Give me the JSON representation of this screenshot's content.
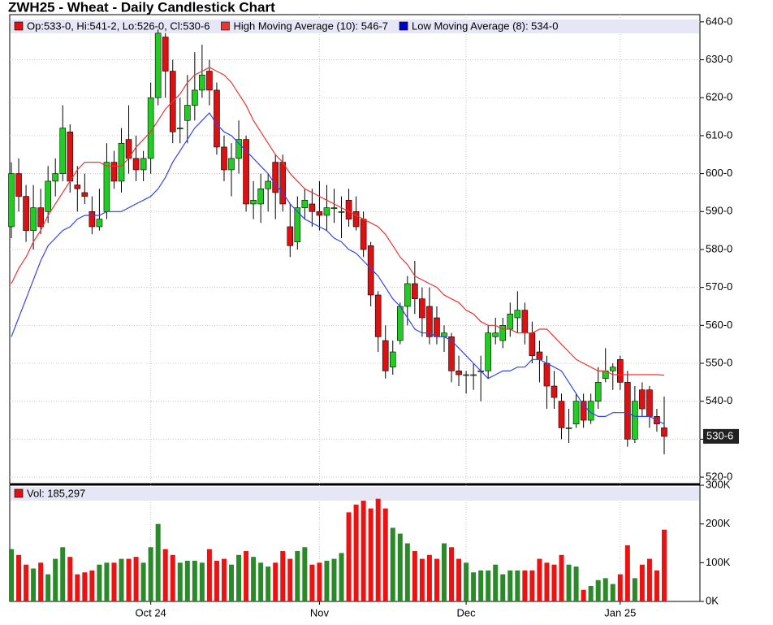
{
  "chart_data": [
    {
      "type": "candlestick",
      "title": "ZWH25 - Wheat - Daily Candlestick Chart",
      "ohlc_label": "Op:533-0, Hi:541-2, Lo:526-0, Cl:530-6",
      "last_label": "530-6",
      "up_color": "#22cc22",
      "down_color": "#dd1111",
      "ylim": [
        518.3,
        641.9
      ],
      "yticks": [
        {
          "value": 520,
          "label": "520-0"
        },
        {
          "value": 530,
          "label": "530-0"
        },
        {
          "value": 540,
          "label": "540-0"
        },
        {
          "value": 550,
          "label": "550-0"
        },
        {
          "value": 560,
          "label": "560-0"
        },
        {
          "value": 570,
          "label": "570-0"
        },
        {
          "value": 580,
          "label": "580-0"
        },
        {
          "value": 590,
          "label": "590-0"
        },
        {
          "value": 600,
          "label": "600-0"
        },
        {
          "value": 610,
          "label": "610-0"
        },
        {
          "value": 620,
          "label": "620-0"
        },
        {
          "value": 630,
          "label": "630-0"
        },
        {
          "value": 640,
          "label": "640-0"
        }
      ],
      "grid": true,
      "open": [
        586,
        600,
        594,
        585,
        591,
        590,
        598,
        600,
        611,
        597,
        595,
        590,
        586,
        590,
        603,
        598,
        609,
        604,
        601,
        604,
        620,
        636,
        627,
        612,
        614,
        618,
        622,
        627,
        622,
        607,
        601,
        604,
        609,
        592,
        592,
        596,
        603,
        603,
        586,
        582,
        591,
        592,
        590,
        589,
        591,
        590,
        593,
        590,
        588,
        581,
        568,
        556,
        549,
        556,
        565,
        571,
        567,
        565,
        562,
        557,
        557,
        548,
        547,
        547,
        548,
        548,
        557,
        556,
        559,
        562,
        564,
        558,
        553,
        550,
        544,
        540,
        533,
        534,
        540,
        535,
        540,
        546,
        548,
        551,
        545,
        530,
        543,
        543,
        536,
        533
      ],
      "high": [
        603,
        604,
        597,
        597,
        596,
        602,
        604,
        618,
        613,
        602,
        600,
        594,
        596,
        608,
        606,
        612,
        618,
        610,
        606,
        624,
        638,
        637,
        630,
        620,
        626,
        632,
        634,
        630,
        624,
        610,
        608,
        614,
        610,
        598,
        600,
        600,
        605,
        605,
        592,
        594,
        596,
        596,
        598,
        597,
        596,
        594,
        596,
        594,
        590,
        582,
        569,
        560,
        556,
        566,
        573,
        577,
        570,
        570,
        565,
        560,
        558,
        552,
        548,
        550,
        552,
        560,
        562,
        562,
        566,
        569,
        566,
        561,
        556,
        552,
        548,
        542,
        538,
        542,
        542,
        542,
        549,
        554,
        550,
        552,
        548,
        544,
        545,
        544,
        538,
        541.25
      ],
      "low": [
        583,
        590,
        582,
        580,
        584,
        587,
        594,
        598,
        595,
        590,
        592,
        584,
        585,
        588,
        596,
        595,
        600,
        598,
        598,
        600,
        618,
        620,
        608,
        608,
        608,
        614,
        620,
        618,
        605,
        598,
        594,
        600,
        590,
        588,
        587,
        590,
        588,
        590,
        578,
        580,
        588,
        586,
        585,
        585,
        587,
        583,
        586,
        585,
        578,
        565,
        553,
        546,
        547,
        555,
        560,
        563,
        557,
        555,
        555,
        553,
        545,
        544,
        542,
        543,
        540,
        546,
        555,
        554,
        557,
        558,
        555,
        550,
        545,
        538,
        538,
        530,
        529,
        533,
        533,
        534,
        538,
        545,
        543,
        543,
        528,
        529,
        536,
        533,
        532,
        526
      ],
      "close": [
        600,
        594,
        585,
        591,
        586,
        598,
        600,
        612,
        598,
        596,
        594,
        586,
        588,
        603,
        598,
        608,
        604,
        601,
        604,
        620,
        637,
        627,
        611,
        612,
        618,
        622,
        626,
        622,
        607,
        601,
        604,
        609,
        592,
        593,
        596,
        598,
        595,
        592,
        581,
        591,
        593,
        590,
        589,
        591,
        591,
        590,
        588,
        586,
        580,
        568,
        557,
        548,
        553,
        565,
        571,
        567,
        562,
        557,
        557,
        558,
        548,
        547,
        547,
        547,
        548,
        558,
        558,
        560,
        563,
        564,
        558,
        552,
        551,
        544,
        541,
        533,
        533,
        540,
        535,
        540,
        545,
        548,
        549,
        545,
        530,
        540,
        538,
        536,
        534,
        530.75
      ],
      "series": [
        {
          "name": "High Moving Average (10): 546-7",
          "color": "#ee3333",
          "values": [
            571,
            575,
            578,
            582,
            585,
            589,
            592,
            595,
            598,
            601,
            603,
            603,
            603,
            602,
            602,
            602,
            604,
            607,
            609,
            611,
            614,
            617,
            619,
            621,
            624,
            626,
            627,
            628,
            627,
            626,
            624,
            621,
            618,
            614,
            611,
            608,
            605,
            603,
            600,
            598,
            596,
            595,
            594,
            593,
            592,
            591,
            590,
            589,
            588,
            587,
            586,
            584,
            581,
            578,
            576,
            573,
            572,
            571,
            570,
            568,
            567,
            566,
            564,
            563,
            561,
            560,
            560,
            559,
            559,
            558,
            558,
            558,
            559,
            559,
            557,
            555,
            553,
            551,
            550,
            549,
            548,
            548,
            547,
            547,
            547,
            547,
            547,
            547,
            547,
            546.875
          ]
        },
        {
          "name": "Low Moving Average (8): 534-0",
          "color": "#0000cc",
          "line_color": "#3344ee",
          "values": [
            557,
            562,
            567,
            572,
            577,
            581,
            583,
            585,
            586,
            588,
            589,
            589,
            589,
            590,
            590,
            590,
            591,
            592,
            593,
            594,
            596,
            599,
            603,
            606,
            609,
            612,
            614,
            616,
            613,
            611,
            610,
            608,
            606,
            604,
            602,
            600,
            597,
            595,
            592,
            590,
            588,
            587,
            586,
            585,
            583,
            582,
            580,
            579,
            577,
            575,
            573,
            570,
            567,
            565,
            562,
            559,
            558,
            558,
            557,
            557,
            556,
            554,
            552,
            550,
            548,
            546,
            547,
            548,
            548,
            549,
            549,
            551,
            551,
            550,
            549,
            548,
            545,
            542,
            539,
            537,
            536,
            536,
            537,
            537,
            537,
            536,
            536,
            536,
            535,
            534
          ]
        }
      ]
    },
    {
      "type": "bar",
      "label": "Vol: 185,297",
      "label_color": "#dd1111",
      "categories": [
        null,
        null,
        null,
        null,
        null,
        null,
        null,
        null,
        null,
        null,
        null,
        null,
        null,
        null,
        null,
        null,
        null,
        null,
        null,
        "Oct 24",
        null,
        null,
        null,
        null,
        null,
        null,
        null,
        null,
        null,
        null,
        null,
        null,
        null,
        null,
        null,
        null,
        null,
        null,
        null,
        null,
        null,
        null,
        "Nov",
        null,
        null,
        null,
        null,
        null,
        null,
        null,
        null,
        null,
        null,
        null,
        null,
        null,
        null,
        null,
        null,
        null,
        null,
        null,
        "Dec",
        null,
        null,
        null,
        null,
        null,
        null,
        null,
        null,
        null,
        null,
        null,
        null,
        null,
        null,
        null,
        null,
        null,
        null,
        null,
        null,
        "Jan 25",
        null,
        null,
        null,
        null,
        null,
        null
      ],
      "ylim": [
        0,
        300000
      ],
      "yticks": [
        {
          "value": 0,
          "label": "0K"
        },
        {
          "value": 100000,
          "label": "100K"
        },
        {
          "value": 200000,
          "label": "200K"
        },
        {
          "value": 300000,
          "label": "300K"
        }
      ],
      "values": [
        135000,
        120000,
        95000,
        85000,
        100000,
        70000,
        110000,
        140000,
        115000,
        70000,
        75000,
        80000,
        95000,
        100000,
        100000,
        110000,
        110000,
        115000,
        100000,
        140000,
        200000,
        135000,
        120000,
        100000,
        105000,
        105000,
        100000,
        135000,
        105000,
        110000,
        95000,
        120000,
        130000,
        115000,
        100000,
        90000,
        100000,
        130000,
        110000,
        130000,
        140000,
        95000,
        100000,
        105000,
        110000,
        125000,
        230000,
        250000,
        260000,
        240000,
        265000,
        240000,
        190000,
        175000,
        150000,
        130000,
        110000,
        120000,
        110000,
        150000,
        140000,
        110000,
        100000,
        75000,
        80000,
        80000,
        95000,
        70000,
        80000,
        80000,
        80000,
        80000,
        110000,
        100000,
        95000,
        120000,
        95000,
        90000,
        30000,
        40000,
        55000,
        60000,
        45000,
        70000,
        145000,
        60000,
        95000,
        110000,
        80000,
        185297
      ]
    }
  ]
}
